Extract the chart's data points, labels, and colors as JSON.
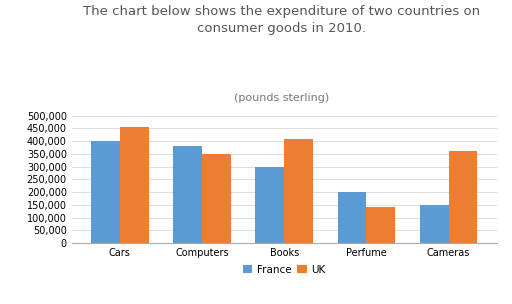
{
  "title_line1": "The chart below shows the expenditure of two countries on",
  "title_line2": "consumer goods in 2010.",
  "subtitle": "(pounds sterling)",
  "categories": [
    "Cars",
    "Computers",
    "Books",
    "Perfume",
    "Cameras"
  ],
  "france_values": [
    400000,
    380000,
    300000,
    200000,
    150000
  ],
  "uk_values": [
    455000,
    350000,
    408000,
    140000,
    360000
  ],
  "france_color": "#5B9BD5",
  "uk_color": "#ED7D31",
  "ylim": [
    0,
    500000
  ],
  "yticks": [
    0,
    50000,
    100000,
    150000,
    200000,
    250000,
    300000,
    350000,
    400000,
    450000,
    500000
  ],
  "legend_labels": [
    "France",
    "UK"
  ],
  "background_color": "#FFFFFF",
  "plot_bg_color": "#FFFFFF",
  "bar_width": 0.35,
  "title_fontsize": 9.5,
  "subtitle_fontsize": 8,
  "tick_fontsize": 7,
  "legend_fontsize": 7.5
}
